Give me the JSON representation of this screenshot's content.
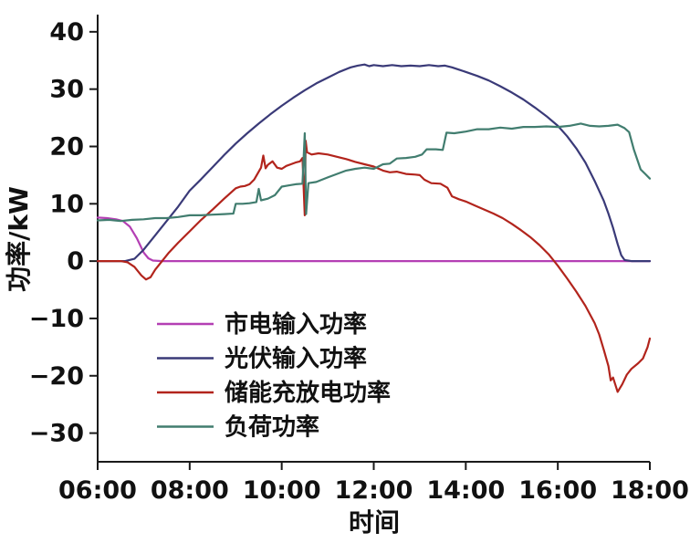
{
  "figure": {
    "background": "#ffffff"
  },
  "chart_data": {
    "type": "line",
    "title": "",
    "xlabel": "时间",
    "ylabel": "功率/kW",
    "x_range": [
      6,
      18
    ],
    "y_range": [
      -35,
      43
    ],
    "grid": false,
    "legend_position": "inside-bottom-left",
    "x_ticks": [
      {
        "value": 6,
        "label": "06:00"
      },
      {
        "value": 8,
        "label": "08:00"
      },
      {
        "value": 10,
        "label": "10:00"
      },
      {
        "value": 12,
        "label": "12:00"
      },
      {
        "value": 14,
        "label": "14:00"
      },
      {
        "value": 16,
        "label": "16:00"
      },
      {
        "value": 18,
        "label": "18:00"
      }
    ],
    "y_ticks": [
      {
        "value": -30,
        "label": "−30"
      },
      {
        "value": -20,
        "label": "−20"
      },
      {
        "value": -10,
        "label": "−10"
      },
      {
        "value": 0,
        "label": "0"
      },
      {
        "value": 10,
        "label": "10"
      },
      {
        "value": 20,
        "label": "20"
      },
      {
        "value": 30,
        "label": "30"
      },
      {
        "value": 40,
        "label": "40"
      }
    ],
    "series": [
      {
        "id": "mains-input-power",
        "name": "市电输入功率",
        "color": "#b43fb4",
        "points": [
          [
            6,
            7.6
          ],
          [
            6.2,
            7.5
          ],
          [
            6.4,
            7.3
          ],
          [
            6.55,
            7.0
          ],
          [
            6.7,
            6.0
          ],
          [
            6.85,
            4.0
          ],
          [
            7.0,
            1.5
          ],
          [
            7.1,
            0.5
          ],
          [
            7.2,
            0.1
          ],
          [
            7.4,
            0
          ],
          [
            18,
            0
          ]
        ]
      },
      {
        "id": "pv-input-power",
        "name": "光伏输入功率",
        "color": "#3a3a78",
        "points": [
          [
            6,
            0
          ],
          [
            6.6,
            0
          ],
          [
            6.8,
            0.4
          ],
          [
            7.0,
            2.0
          ],
          [
            7.25,
            4.5
          ],
          [
            7.5,
            7.0
          ],
          [
            7.75,
            9.5
          ],
          [
            8.0,
            12.3
          ],
          [
            8.25,
            14.3
          ],
          [
            8.5,
            16.4
          ],
          [
            8.75,
            18.5
          ],
          [
            9.0,
            20.5
          ],
          [
            9.25,
            22.3
          ],
          [
            9.5,
            24.0
          ],
          [
            9.75,
            25.6
          ],
          [
            10.0,
            27.1
          ],
          [
            10.25,
            28.5
          ],
          [
            10.5,
            29.8
          ],
          [
            10.75,
            31.0
          ],
          [
            11.0,
            32.0
          ],
          [
            11.25,
            33.0
          ],
          [
            11.5,
            33.8
          ],
          [
            11.65,
            34.1
          ],
          [
            11.8,
            34.3
          ],
          [
            11.9,
            34.0
          ],
          [
            12.0,
            34.2
          ],
          [
            12.2,
            34.0
          ],
          [
            12.4,
            34.2
          ],
          [
            12.6,
            34.0
          ],
          [
            12.8,
            34.1
          ],
          [
            13.0,
            34.0
          ],
          [
            13.2,
            34.2
          ],
          [
            13.4,
            34.0
          ],
          [
            13.55,
            34.1
          ],
          [
            13.7,
            33.8
          ],
          [
            13.85,
            33.4
          ],
          [
            14.0,
            33.0
          ],
          [
            14.25,
            32.3
          ],
          [
            14.5,
            31.5
          ],
          [
            14.75,
            30.5
          ],
          [
            15.0,
            29.4
          ],
          [
            15.25,
            28.2
          ],
          [
            15.5,
            26.8
          ],
          [
            15.75,
            25.3
          ],
          [
            16.0,
            23.6
          ],
          [
            16.2,
            21.8
          ],
          [
            16.4,
            19.7
          ],
          [
            16.6,
            17.2
          ],
          [
            16.8,
            14.0
          ],
          [
            17.0,
            10.5
          ],
          [
            17.1,
            8.3
          ],
          [
            17.2,
            5.8
          ],
          [
            17.3,
            3.0
          ],
          [
            17.38,
            1.0
          ],
          [
            17.45,
            0.2
          ],
          [
            17.6,
            0
          ],
          [
            18,
            0
          ]
        ]
      },
      {
        "id": "storage-charge-discharge-power",
        "name": "储能充放电功率",
        "color": "#b2241c",
        "points": [
          [
            6,
            0
          ],
          [
            6.5,
            0
          ],
          [
            6.65,
            -0.2
          ],
          [
            6.8,
            -1.0
          ],
          [
            6.95,
            -2.5
          ],
          [
            7.05,
            -3.2
          ],
          [
            7.15,
            -2.8
          ],
          [
            7.25,
            -1.5
          ],
          [
            7.4,
            0
          ],
          [
            7.55,
            1.5
          ],
          [
            7.75,
            3.2
          ],
          [
            8.0,
            5.2
          ],
          [
            8.25,
            7.2
          ],
          [
            8.5,
            9.0
          ],
          [
            8.75,
            10.9
          ],
          [
            9.0,
            12.7
          ],
          [
            9.1,
            13.0
          ],
          [
            9.2,
            13.1
          ],
          [
            9.3,
            13.4
          ],
          [
            9.4,
            14.2
          ],
          [
            9.5,
            15.6
          ],
          [
            9.55,
            16.3
          ],
          [
            9.6,
            18.4
          ],
          [
            9.65,
            16.2
          ],
          [
            9.7,
            16.8
          ],
          [
            9.8,
            17.4
          ],
          [
            9.9,
            16.3
          ],
          [
            10.0,
            16.1
          ],
          [
            10.1,
            16.6
          ],
          [
            10.2,
            16.9
          ],
          [
            10.3,
            17.2
          ],
          [
            10.4,
            17.4
          ],
          [
            10.45,
            18.0
          ],
          [
            10.5,
            8.0
          ],
          [
            10.52,
            21.0
          ],
          [
            10.55,
            19.0
          ],
          [
            10.65,
            18.6
          ],
          [
            10.8,
            18.8
          ],
          [
            11.0,
            18.6
          ],
          [
            11.2,
            18.2
          ],
          [
            11.4,
            17.8
          ],
          [
            11.6,
            17.3
          ],
          [
            11.8,
            16.9
          ],
          [
            12.0,
            16.5
          ],
          [
            12.2,
            15.8
          ],
          [
            12.35,
            15.5
          ],
          [
            12.5,
            15.6
          ],
          [
            12.7,
            15.2
          ],
          [
            12.9,
            15.1
          ],
          [
            13.0,
            15.0
          ],
          [
            13.1,
            14.2
          ],
          [
            13.25,
            13.6
          ],
          [
            13.45,
            13.5
          ],
          [
            13.6,
            12.8
          ],
          [
            13.7,
            11.3
          ],
          [
            13.85,
            10.8
          ],
          [
            14.0,
            10.4
          ],
          [
            14.2,
            9.7
          ],
          [
            14.4,
            9.0
          ],
          [
            14.6,
            8.3
          ],
          [
            14.8,
            7.5
          ],
          [
            15.0,
            6.5
          ],
          [
            15.2,
            5.4
          ],
          [
            15.4,
            4.2
          ],
          [
            15.6,
            2.8
          ],
          [
            15.8,
            1.2
          ],
          [
            16.0,
            -0.8
          ],
          [
            16.2,
            -3.0
          ],
          [
            16.4,
            -5.3
          ],
          [
            16.6,
            -7.8
          ],
          [
            16.8,
            -10.8
          ],
          [
            16.9,
            -12.8
          ],
          [
            17.0,
            -15.5
          ],
          [
            17.1,
            -18.3
          ],
          [
            17.15,
            -20.8
          ],
          [
            17.2,
            -20.3
          ],
          [
            17.3,
            -22.8
          ],
          [
            17.4,
            -21.5
          ],
          [
            17.5,
            -19.8
          ],
          [
            17.6,
            -18.8
          ],
          [
            17.75,
            -17.8
          ],
          [
            17.85,
            -17.0
          ],
          [
            17.95,
            -15.0
          ],
          [
            18,
            -13.5
          ]
        ]
      },
      {
        "id": "load-power",
        "name": "负荷功率",
        "color": "#417d6f",
        "points": [
          [
            6,
            7.1
          ],
          [
            6.25,
            7.2
          ],
          [
            6.5,
            7.0
          ],
          [
            6.75,
            7.2
          ],
          [
            7.0,
            7.3
          ],
          [
            7.25,
            7.5
          ],
          [
            7.5,
            7.5
          ],
          [
            7.75,
            7.7
          ],
          [
            8.0,
            8.0
          ],
          [
            8.25,
            8.0
          ],
          [
            8.5,
            8.1
          ],
          [
            8.75,
            8.2
          ],
          [
            8.95,
            8.3
          ],
          [
            9.0,
            10.0
          ],
          [
            9.15,
            10.0
          ],
          [
            9.3,
            10.1
          ],
          [
            9.45,
            10.3
          ],
          [
            9.5,
            12.6
          ],
          [
            9.55,
            10.6
          ],
          [
            9.7,
            10.9
          ],
          [
            9.85,
            11.5
          ],
          [
            10.0,
            13.0
          ],
          [
            10.15,
            13.2
          ],
          [
            10.3,
            13.4
          ],
          [
            10.45,
            13.5
          ],
          [
            10.5,
            22.3
          ],
          [
            10.53,
            8.2
          ],
          [
            10.58,
            13.6
          ],
          [
            10.75,
            13.8
          ],
          [
            11.0,
            14.6
          ],
          [
            11.2,
            15.2
          ],
          [
            11.4,
            15.8
          ],
          [
            11.6,
            16.1
          ],
          [
            11.8,
            16.3
          ],
          [
            12.0,
            16.1
          ],
          [
            12.2,
            16.9
          ],
          [
            12.35,
            17.0
          ],
          [
            12.5,
            17.9
          ],
          [
            12.7,
            18.0
          ],
          [
            12.9,
            18.2
          ],
          [
            13.05,
            18.6
          ],
          [
            13.15,
            19.5
          ],
          [
            13.35,
            19.5
          ],
          [
            13.5,
            19.4
          ],
          [
            13.58,
            22.4
          ],
          [
            13.75,
            22.3
          ],
          [
            14.0,
            22.6
          ],
          [
            14.25,
            23.0
          ],
          [
            14.5,
            23.0
          ],
          [
            14.75,
            23.3
          ],
          [
            15.0,
            23.1
          ],
          [
            15.25,
            23.4
          ],
          [
            15.5,
            23.4
          ],
          [
            15.75,
            23.5
          ],
          [
            16.0,
            23.4
          ],
          [
            16.25,
            23.6
          ],
          [
            16.5,
            24.0
          ],
          [
            16.7,
            23.6
          ],
          [
            16.9,
            23.5
          ],
          [
            17.1,
            23.6
          ],
          [
            17.3,
            23.8
          ],
          [
            17.45,
            23.2
          ],
          [
            17.55,
            22.5
          ],
          [
            17.65,
            19.5
          ],
          [
            17.8,
            16.0
          ],
          [
            17.9,
            15.2
          ],
          [
            18,
            14.4
          ]
        ]
      }
    ]
  }
}
